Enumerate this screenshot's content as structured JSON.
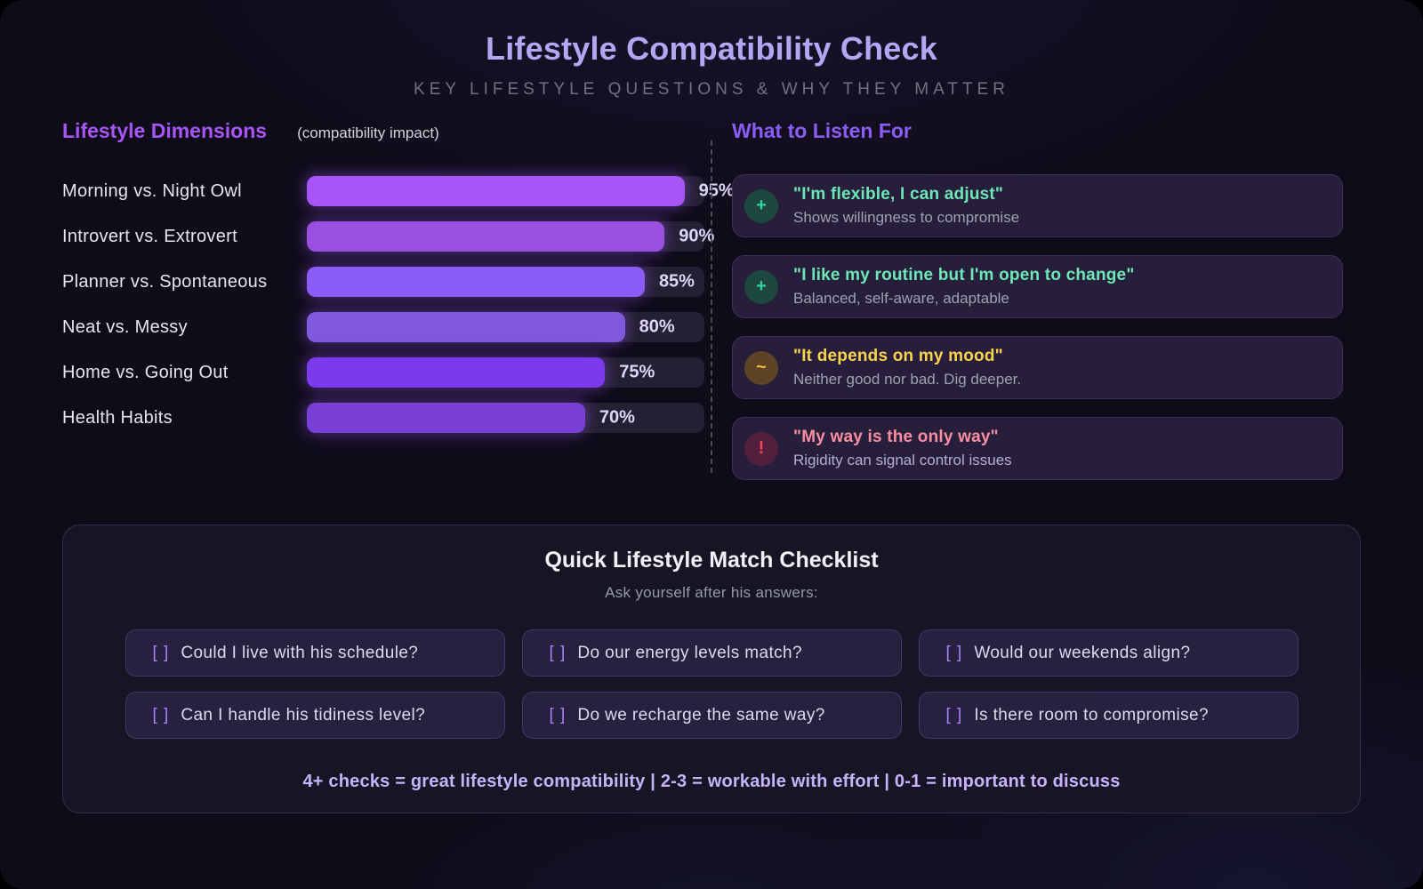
{
  "header": {
    "title": "Lifestyle Compatibility Check",
    "subtitle": "KEY LIFESTYLE QUESTIONS & WHY THEY MATTER"
  },
  "chart": {
    "heading": "Lifestyle Dimensions",
    "heading_note": "(compatibility impact)",
    "bars": [
      {
        "label": "Morning vs. Night Owl",
        "value": 95,
        "display": "95%",
        "color": "#a855f7"
      },
      {
        "label": "Introvert vs. Extrovert",
        "value": 90,
        "display": "90%",
        "color": "#9b4fdf"
      },
      {
        "label": "Planner vs. Spontaneous",
        "value": 85,
        "display": "85%",
        "color": "#8b5cf6"
      },
      {
        "label": "Neat vs. Messy",
        "value": 80,
        "display": "80%",
        "color": "#7f58dd"
      },
      {
        "label": "Home vs. Going Out",
        "value": 75,
        "display": "75%",
        "color": "#7c3aed"
      },
      {
        "label": "Health Habits",
        "value": 70,
        "display": "70%",
        "color": "#7a3fd6"
      }
    ]
  },
  "listen": {
    "heading": "What to Listen For",
    "cards": [
      {
        "icon": "plus-icon",
        "glyph": "+",
        "quote": "\"I'm flexible, I can adjust\"",
        "note": "Shows willingness to compromise",
        "quote_color": "#6ee7b7",
        "note_color": "#9ca3af",
        "icon_color": "#34d399",
        "icon_bg": "#1d473f"
      },
      {
        "icon": "plus-icon",
        "glyph": "+",
        "quote": "\"I like my routine but I'm open to change\"",
        "note": "Balanced, self-aware, adaptable",
        "quote_color": "#6ee7b7",
        "note_color": "#9ca3af",
        "icon_color": "#34d399",
        "icon_bg": "#1d473f"
      },
      {
        "icon": "tilde-icon",
        "glyph": "~",
        "quote": "\"It depends on my mood\"",
        "note": "Neither good nor bad. Dig deeper.",
        "quote_color": "#fcd34d",
        "note_color": "#9ca3af",
        "icon_color": "#f6b93f",
        "icon_bg": "#5d4426"
      },
      {
        "icon": "exclamation-icon",
        "glyph": "!",
        "quote": "\"My way is the only way\"",
        "note": "Rigidity can signal control issues",
        "quote_color": "#fb8da0",
        "note_color": "#b4afd2",
        "icon_color": "#f43f5e",
        "icon_bg": "#53203c"
      }
    ]
  },
  "checklist": {
    "title": "Quick Lifestyle Match Checklist",
    "subtitle": "Ask yourself after his answers:",
    "checkbox_glyph": "[ ]",
    "items": [
      "Could I live with his schedule?",
      "Do our energy levels match?",
      "Would our weekends align?",
      "Can I handle his tidiness level?",
      "Do we recharge the same way?",
      "Is there room to compromise?"
    ],
    "footer": "4+ checks = great lifestyle compatibility | 2-3 = workable with effort | 0-1 = important to discuss"
  },
  "chart_data": {
    "type": "bar",
    "orientation": "horizontal",
    "title": "Lifestyle Dimensions (compatibility impact)",
    "categories": [
      "Morning vs. Night Owl",
      "Introvert vs. Extrovert",
      "Planner vs. Spontaneous",
      "Neat vs. Messy",
      "Home vs. Going Out",
      "Health Habits"
    ],
    "values": [
      95,
      90,
      85,
      80,
      75,
      70
    ],
    "data_labels": [
      "95%",
      "90%",
      "85%",
      "80%",
      "75%",
      "70%"
    ],
    "unit": "%",
    "xlim": [
      0,
      100
    ],
    "grid": false,
    "legend": false,
    "bar_colors": [
      "#a855f7",
      "#9b4fdf",
      "#8b5cf6",
      "#7f58dd",
      "#7c3aed",
      "#7a3fd6"
    ]
  }
}
